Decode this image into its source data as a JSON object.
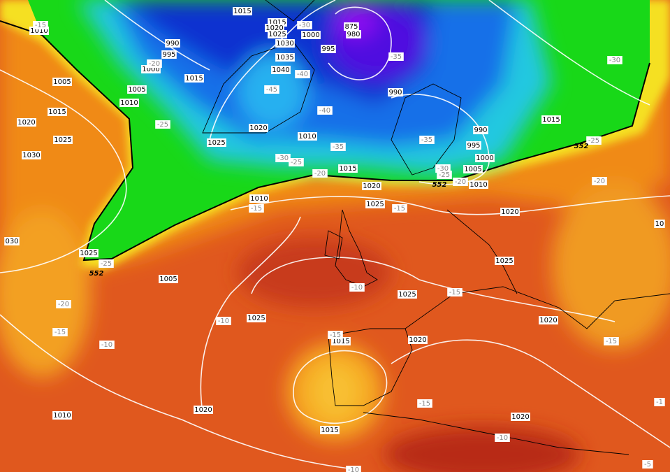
{
  "isobar_labels": [
    "1015",
    "1015",
    "1020",
    "1025",
    "1030",
    "1035",
    "1040",
    "1000",
    "995",
    "875",
    "980",
    "990",
    "995",
    "1000",
    "1005",
    "1005",
    "1010",
    "1015",
    "1015",
    "1020",
    "1025",
    "1030",
    "1020",
    "1025",
    "1010",
    "1015",
    "1020",
    "1025",
    "1010",
    "990",
    "990",
    "995",
    "1000",
    "1005",
    "1010",
    "1015",
    "1020",
    "1025",
    "1025",
    "1025",
    "1020",
    "1020",
    "1015",
    "1015",
    "1020",
    "1020",
    "1010",
    "1005",
    "1025",
    "1010",
    "030",
    "10"
  ],
  "temperature_labels": [
    "-15",
    "-20",
    "-25",
    "-30",
    "-35",
    "-40",
    "-45",
    "-40",
    "-35",
    "-30",
    "-25",
    "-20",
    "-15",
    "-15",
    "-25",
    "-20",
    "-30",
    "-25",
    "-20",
    "-35",
    "-25",
    "-20",
    "-15",
    "-10",
    "-10",
    "-10",
    "-15",
    "-15",
    "-15",
    "-10",
    "-15",
    "-10",
    "-5",
    "-1",
    "-30"
  ],
  "height_labels": [
    "552",
    "552",
    "552"
  ]
}
